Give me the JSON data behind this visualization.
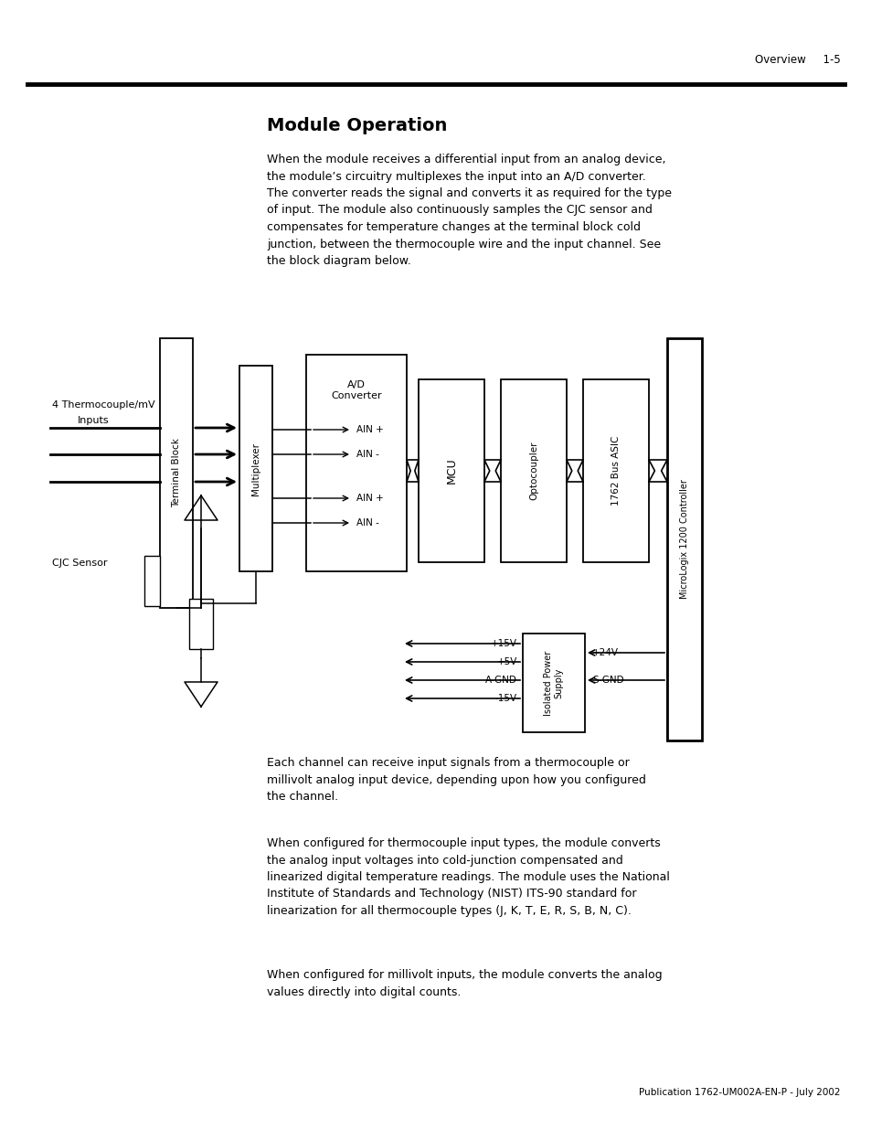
{
  "page_header_right": "Overview     1-5",
  "title": "Module Operation",
  "body_text_1": "When the module receives a differential input from an analog device,\nthe module’s circuitry multiplexes the input into an A/D converter.\nThe converter reads the signal and converts it as required for the type\nof input. The module also continuously samples the CJC sensor and\ncompensates for temperature changes at the terminal block cold\njunction, between the thermocouple wire and the input channel. See\nthe block diagram below.",
  "body_text_2": "Each channel can receive input signals from a thermocouple or\nmillivolt analog input device, depending upon how you configured\nthe channel.",
  "body_text_3": "When configured for thermocouple input types, the module converts\nthe analog input voltages into cold-junction compensated and\nlinearized digital temperature readings. The module uses the National\nInstitute of Standards and Technology (NIST) ITS-90 standard for\nlinearization for all thermocouple types (J, K, T, E, R, S, B, N, C).",
  "body_text_4": "When configured for millivolt inputs, the module converts the analog\nvalues directly into digital counts.",
  "footer_text": "Publication 1762-UM002A-EN-P - July 2002",
  "bg_color": "#ffffff",
  "text_color": "#000000"
}
